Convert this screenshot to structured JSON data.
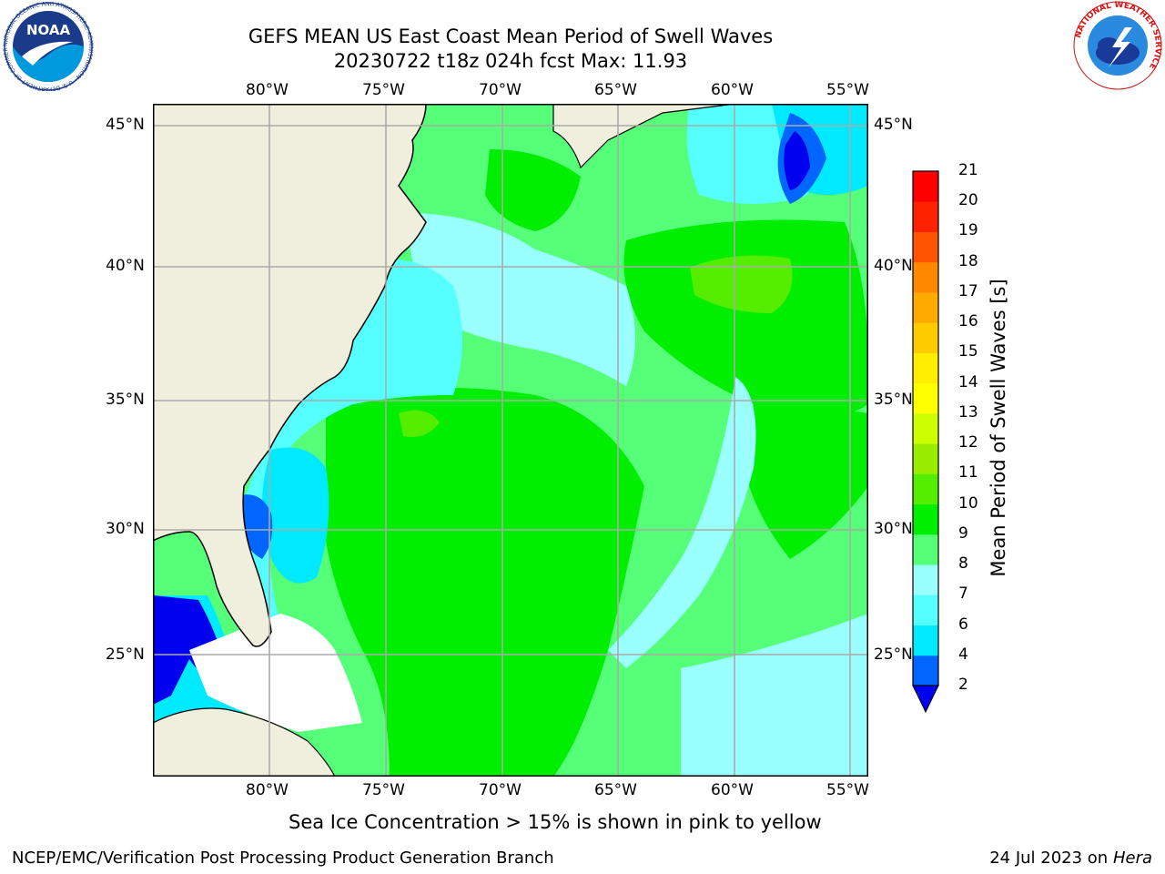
{
  "header": {
    "title_line1": "GEFS MEAN US East Coast Mean Period of Swell Waves",
    "title_line2": "20230722 t18z 024h fcst   Max: 11.93"
  },
  "logos": {
    "left": "noara-logo",
    "right": "nws-logo",
    "left_text": "NOAA",
    "left_ring": "NATIONAL OCEANIC AND ATMOSPHERIC ADMINISTRATION · U.S. DEPARTMENT OF COMMERCE",
    "right_ring": "NATIONAL WEATHER SERVICE"
  },
  "map": {
    "lon_labels": [
      "80°W",
      "75°W",
      "70°W",
      "65°W",
      "60°W",
      "55°W"
    ],
    "lat_labels": [
      "45°N",
      "40°N",
      "35°N",
      "30°N",
      "25°N"
    ],
    "colors": {
      "land": "#f0eedc",
      "ocean_bg": "#00ff00",
      "grid": "#aaaaaa",
      "missing": "#ffffff"
    }
  },
  "colorbar": {
    "label": "Mean Period of Swell Waves [s]",
    "ticks": [
      "2",
      "4",
      "6",
      "7",
      "8",
      "9",
      "10",
      "11",
      "12",
      "13",
      "14",
      "15",
      "16",
      "17",
      "18",
      "19",
      "20",
      "21"
    ],
    "colors": [
      "#0066ff",
      "#00eaff",
      "#55ffff",
      "#99ffff",
      "#55ff77",
      "#00ee00",
      "#55ee00",
      "#99ee00",
      "#ccff00",
      "#ffff00",
      "#ffee00",
      "#ffcc00",
      "#ffaa00",
      "#ff8800",
      "#ff5500",
      "#ff2200",
      "#ff0000"
    ],
    "under_color": "#0000ee"
  },
  "notes": {
    "sea_ice": "Sea Ice Concentration > 15% is shown in pink to yellow"
  },
  "footer": {
    "left": "NCEP/EMC/Verification Post Processing Product Generation Branch",
    "right_prefix": "24 Jul 2023 on ",
    "right_machine": "Hera"
  }
}
